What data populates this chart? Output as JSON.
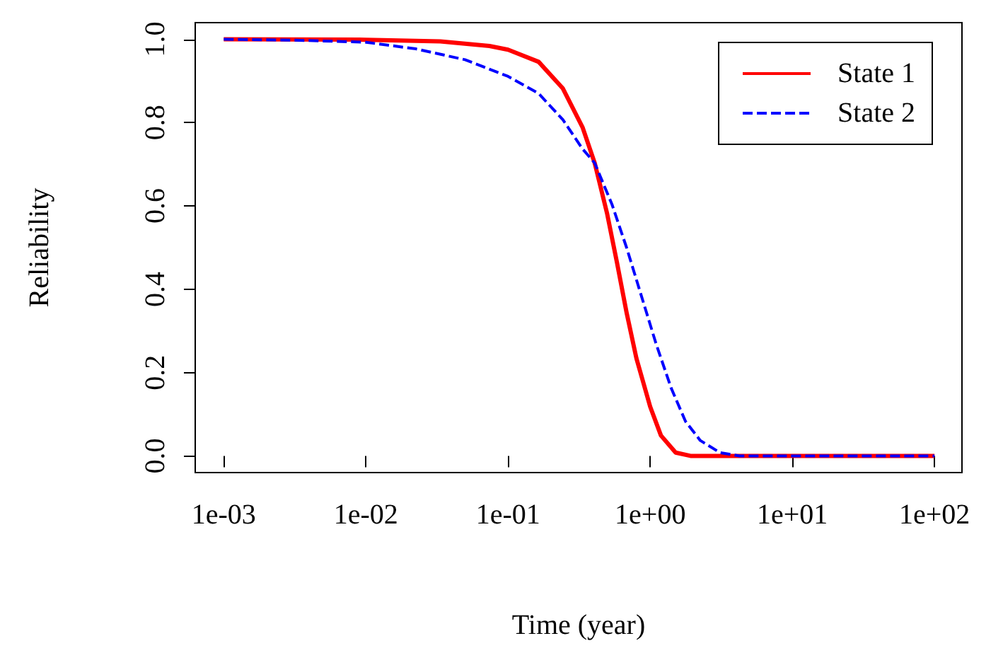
{
  "chart_data": {
    "type": "line",
    "xlabel": "Time (year)",
    "ylabel": "Reliability",
    "log": "x",
    "grid": false,
    "legend": "top right",
    "marker": "none",
    "xlim": [
      0.00063,
      156
    ],
    "ylim": [
      -0.04,
      1.04
    ],
    "xticks": [
      {
        "value": 0.001,
        "label": "1e-03"
      },
      {
        "value": 0.01,
        "label": "1e-02"
      },
      {
        "value": 0.1,
        "label": "1e-01"
      },
      {
        "value": 1,
        "label": "1e+00"
      },
      {
        "value": 10,
        "label": "1e+01"
      },
      {
        "value": 100,
        "label": "1e+02"
      }
    ],
    "yticks": [
      {
        "value": 0,
        "label": "0.0"
      },
      {
        "value": 0.2,
        "label": "0.2"
      },
      {
        "value": 0.4,
        "label": "0.4"
      },
      {
        "value": 0.6,
        "label": "0.6"
      },
      {
        "value": 0.8,
        "label": "0.8"
      },
      {
        "value": 1,
        "label": "1.0"
      }
    ],
    "series": [
      {
        "name": "State 1",
        "color": "#ff0000",
        "line_style": "solid",
        "x": [
          0.001,
          0.01,
          0.0334,
          0.074,
          0.1,
          0.164,
          0.243,
          0.334,
          0.407,
          0.498,
          0.583,
          0.682,
          0.8,
          1,
          1.19,
          1.51,
          1.92,
          10,
          100
        ],
        "values": [
          1,
          0.999,
          0.995,
          0.984,
          0.975,
          0.946,
          0.882,
          0.789,
          0.703,
          0.581,
          0.465,
          0.344,
          0.234,
          0.118,
          0.049,
          0.008,
          0,
          0,
          0
        ]
      },
      {
        "name": "State 2",
        "color": "#0000ff",
        "line_style": "dashed",
        "x": [
          0.001,
          0.00309,
          0.01,
          0.0225,
          0.0498,
          0.1,
          0.164,
          0.243,
          0.334,
          0.407,
          0.538,
          0.682,
          0.867,
          1.1,
          1.4,
          1.77,
          2.25,
          3.09,
          4.25,
          10,
          100
        ],
        "values": [
          1,
          0.998,
          0.993,
          0.977,
          0.951,
          0.911,
          0.87,
          0.807,
          0.737,
          0.703,
          0.604,
          0.5,
          0.384,
          0.269,
          0.164,
          0.083,
          0.037,
          0.008,
          0,
          0,
          0
        ]
      }
    ]
  }
}
